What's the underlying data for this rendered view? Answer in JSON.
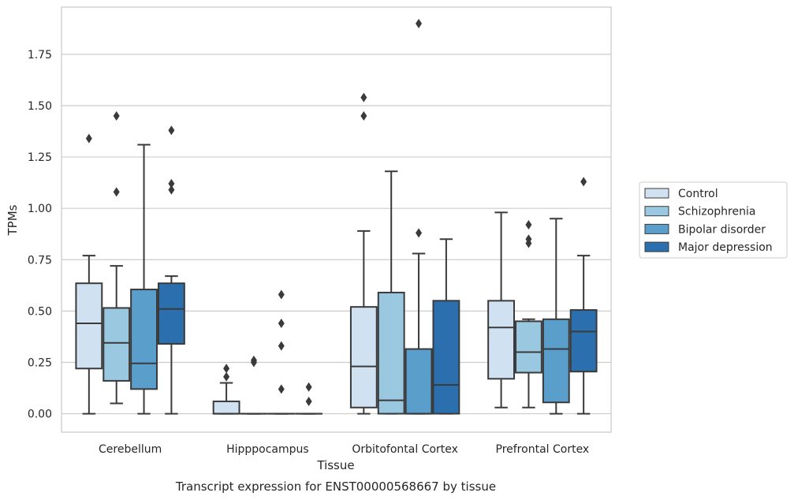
{
  "chart_data": {
    "type": "box",
    "title": "",
    "caption": "Transcript expression for ENST00000568667 by tissue",
    "xlabel": "Tissue",
    "ylabel": "TPMs",
    "ylim": [
      -0.09,
      1.98
    ],
    "yticks": [
      "0.00",
      "0.25",
      "0.50",
      "0.75",
      "1.00",
      "1.25",
      "1.50",
      "1.75"
    ],
    "grid": "horizontal",
    "legend_position": "right",
    "categories": [
      "Cerebellum",
      "Hipppocampus",
      "Orbitofontal Cortex",
      "Prefrontal Cortex"
    ],
    "series": [
      {
        "name": "Control",
        "color": "#d0e1f2",
        "boxes": [
          {
            "whislo": 0.0,
            "q1": 0.22,
            "med": 0.44,
            "q3": 0.635,
            "whishi": 0.77,
            "fliers": [
              1.34
            ]
          },
          {
            "whislo": 0.0,
            "q1": 0.0,
            "med": 0.0,
            "q3": 0.06,
            "whishi": 0.15,
            "fliers": [
              0.18,
              0.22
            ]
          },
          {
            "whislo": 0.0,
            "q1": 0.03,
            "med": 0.23,
            "q3": 0.52,
            "whishi": 0.89,
            "fliers": [
              1.45,
              1.54
            ]
          },
          {
            "whislo": 0.03,
            "q1": 0.17,
            "med": 0.42,
            "q3": 0.55,
            "whishi": 0.98,
            "fliers": []
          }
        ]
      },
      {
        "name": "Schizophrenia",
        "color": "#9ac8e0",
        "boxes": [
          {
            "whislo": 0.05,
            "q1": 0.16,
            "med": 0.345,
            "q3": 0.515,
            "whishi": 0.72,
            "fliers": [
              1.08,
              1.45
            ]
          },
          {
            "whislo": 0.0,
            "q1": 0.0,
            "med": 0.0,
            "q3": 0.0,
            "whishi": 0.0,
            "fliers": [
              0.25,
              0.26
            ]
          },
          {
            "whislo": 0.0,
            "q1": 0.0,
            "med": 0.065,
            "q3": 0.59,
            "whishi": 1.18,
            "fliers": []
          },
          {
            "whislo": 0.03,
            "q1": 0.2,
            "med": 0.3,
            "q3": 0.45,
            "whishi": 0.46,
            "fliers": [
              0.83,
              0.85,
              0.92
            ]
          }
        ]
      },
      {
        "name": "Bipolar disorder",
        "color": "#5a9ecc",
        "boxes": [
          {
            "whislo": 0.0,
            "q1": 0.12,
            "med": 0.245,
            "q3": 0.605,
            "whishi": 1.31,
            "fliers": []
          },
          {
            "whislo": 0.0,
            "q1": 0.0,
            "med": 0.0,
            "q3": 0.0,
            "whishi": 0.0,
            "fliers": [
              0.12,
              0.33,
              0.44,
              0.58
            ]
          },
          {
            "whislo": 0.0,
            "q1": 0.0,
            "med": 0.0,
            "q3": 0.315,
            "whishi": 0.78,
            "fliers": [
              0.88,
              1.9
            ]
          },
          {
            "whislo": 0.0,
            "q1": 0.055,
            "med": 0.315,
            "q3": 0.46,
            "whishi": 0.95,
            "fliers": []
          }
        ]
      },
      {
        "name": "Major depression",
        "color": "#2c6faf",
        "boxes": [
          {
            "whislo": 0.0,
            "q1": 0.34,
            "med": 0.51,
            "q3": 0.635,
            "whishi": 0.67,
            "fliers": [
              1.09,
              1.12,
              1.38
            ]
          },
          {
            "whislo": 0.0,
            "q1": 0.0,
            "med": 0.0,
            "q3": 0.0,
            "whishi": 0.0,
            "fliers": [
              0.06,
              0.13
            ]
          },
          {
            "whislo": 0.0,
            "q1": 0.0,
            "med": 0.14,
            "q3": 0.55,
            "whishi": 0.85,
            "fliers": []
          },
          {
            "whislo": 0.0,
            "q1": 0.205,
            "med": 0.4,
            "q3": 0.505,
            "whishi": 0.77,
            "fliers": [
              1.13
            ]
          }
        ]
      }
    ]
  }
}
